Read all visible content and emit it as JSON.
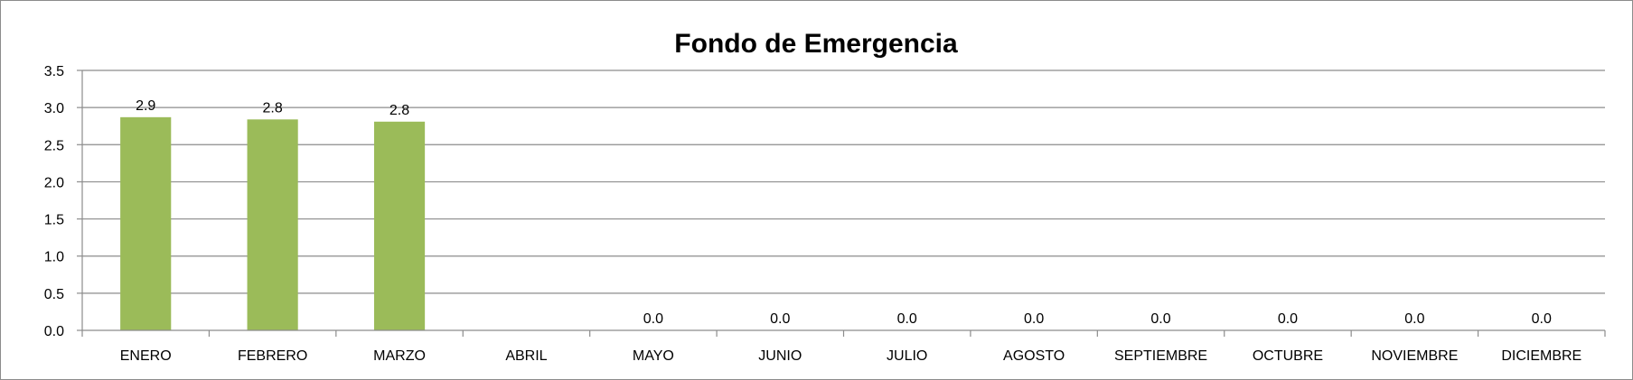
{
  "chart_data": {
    "type": "bar",
    "title": "Fondo de Emergencia",
    "categories": [
      "ENERO",
      "FEBRERO",
      "MARZO",
      "ABRIL",
      "MAYO",
      "JUNIO",
      "JULIO",
      "AGOSTO",
      "SEPTIEMBRE",
      "OCTUBRE",
      "NOVIEMBRE",
      "DICIEMBRE"
    ],
    "values": [
      2.87,
      2.84,
      2.81,
      null,
      0,
      0,
      0,
      0,
      0,
      0,
      0,
      0
    ],
    "data_labels": [
      "2.9",
      "2.8",
      "2.8",
      "",
      "0.0",
      "0.0",
      "0.0",
      "0.0",
      "0.0",
      "0.0",
      "0.0",
      "0.0"
    ],
    "y_ticks": [
      "0.0",
      "0.5",
      "1.0",
      "1.5",
      "2.0",
      "2.5",
      "3.0",
      "3.5"
    ],
    "ylim": [
      0,
      3.5
    ],
    "grid": true,
    "legend": "none",
    "bar_color": "#9bbb59",
    "grid_color": "#8c8c8c"
  }
}
